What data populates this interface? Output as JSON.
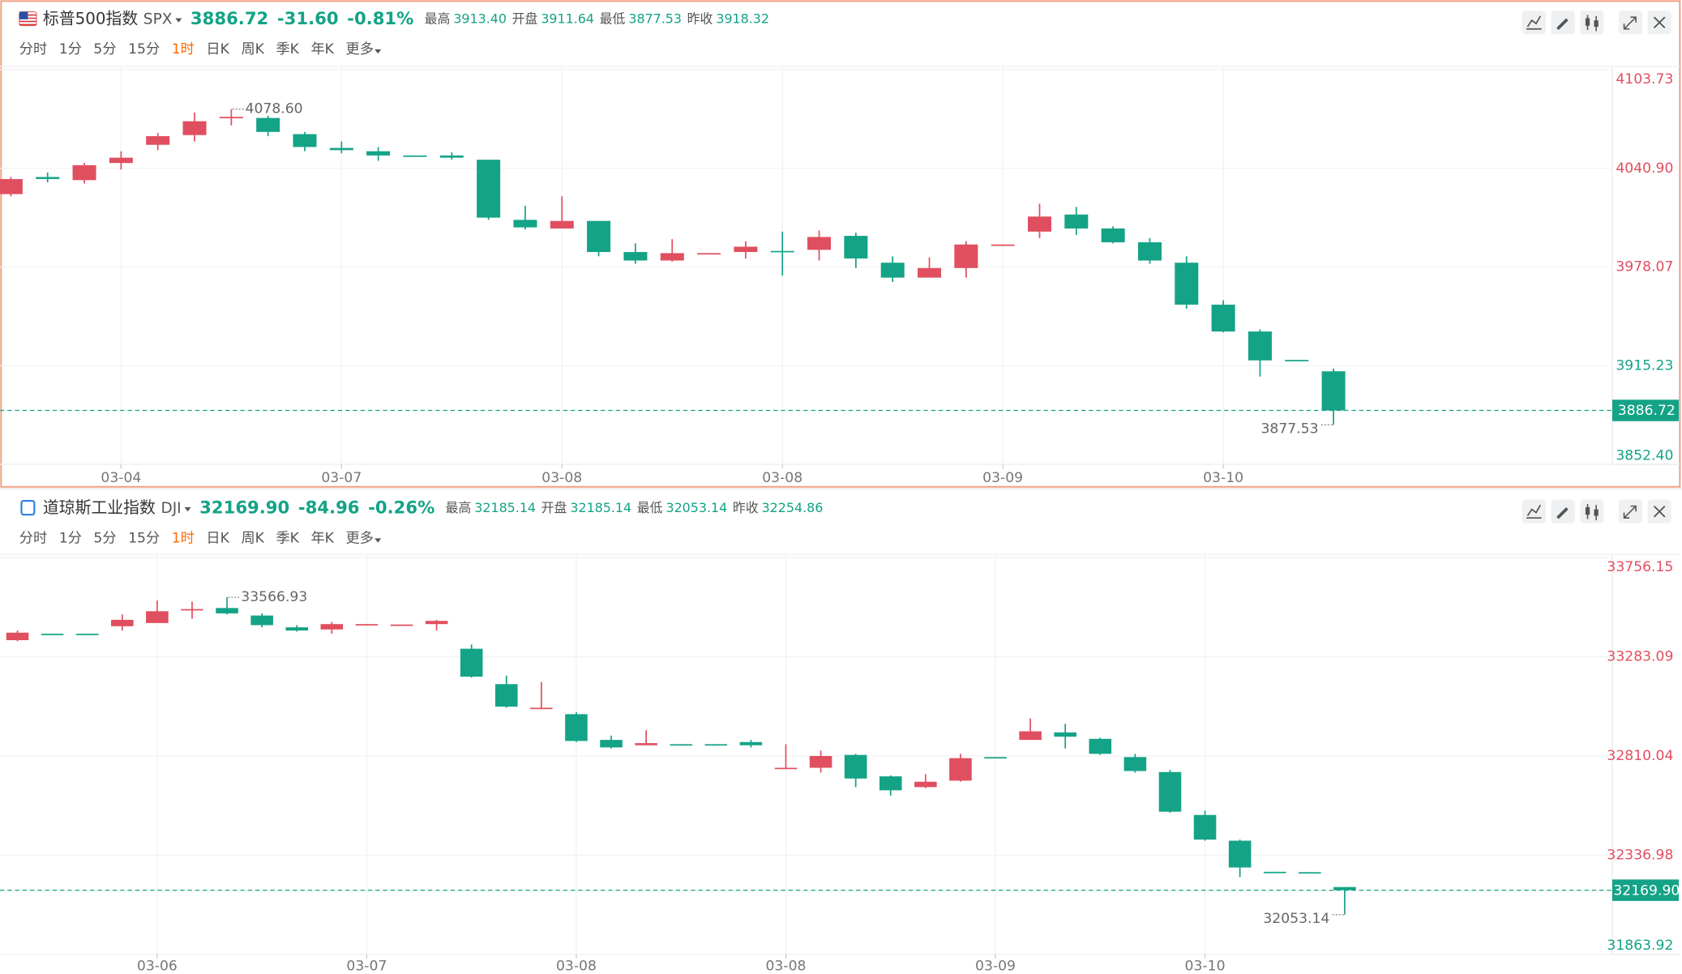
{
  "chart_data": [
    {
      "type": "candlestick",
      "name": "标普500指数",
      "symbol": "SPX",
      "price": "3886.72",
      "change": "-31.60",
      "change_pct": "-0.81%",
      "stats": [
        {
          "label": "最高",
          "value": "3913.40"
        },
        {
          "label": "开盘",
          "value": "3911.64"
        },
        {
          "label": "最低",
          "value": "3877.53"
        },
        {
          "label": "昨收",
          "value": "3918.32"
        }
      ],
      "periods": [
        "分时",
        "1分",
        "5分",
        "15分",
        "1时",
        "日K",
        "周K",
        "季K",
        "年K",
        "更多"
      ],
      "active_period": "1时",
      "up_color": "#e04f5f",
      "down_color": "#14a386",
      "categories": [
        null,
        null,
        null,
        "03-04",
        null,
        null,
        null,
        null,
        null,
        "03-07",
        null,
        null,
        null,
        null,
        null,
        "03-08",
        null,
        null,
        null,
        null,
        null,
        "03-08",
        null,
        null,
        null,
        null,
        null,
        "03-09",
        null,
        null,
        null,
        null,
        null,
        "03-10",
        null,
        null,
        null
      ],
      "open": [
        4024.5,
        4035.4,
        4033.4,
        4044.3,
        4055.9,
        4062.1,
        4073.0,
        4073.0,
        4062.7,
        4053.9,
        4051.8,
        4049.1,
        4049.1,
        4046.4,
        4008.1,
        4002.6,
        4007.4,
        3987.6,
        3982.2,
        3986.2,
        3987.6,
        3988.3,
        3989.0,
        3997.9,
        3980.8,
        3971.3,
        3977.4,
        3991.7,
        4000.6,
        4011.5,
        4002.6,
        3993.8,
        3980.8,
        3954.1,
        3937.0,
        3918.9,
        3911.64
      ],
      "high": [
        4035.4,
        4038.2,
        4044.3,
        4051.8,
        4063.4,
        4076.5,
        4078.6,
        4074.4,
        4064.1,
        4058.0,
        4054.5,
        4049.1,
        4051.1,
        4046.4,
        4017.0,
        4023.1,
        4007.4,
        3993.1,
        3995.8,
        3986.9,
        3994.5,
        4000.6,
        4001.3,
        3999.9,
        3984.9,
        3984.2,
        3994.5,
        3992.4,
        4018.4,
        4016.3,
        4004.0,
        3996.5,
        3984.9,
        3956.9,
        3938.4,
        3918.9,
        3913.4
      ],
      "low": [
        4023.1,
        4032.0,
        4031.3,
        4040.2,
        4052.5,
        4058.0,
        4068.2,
        4061.4,
        4051.8,
        4050.5,
        4045.7,
        4048.4,
        4046.4,
        4008.1,
        4001.9,
        4002.6,
        3984.9,
        3980.1,
        3981.5,
        3986.2,
        3983.5,
        3972.6,
        3982.2,
        3977.4,
        3968.5,
        3971.3,
        3971.3,
        3991.7,
        3996.5,
        3998.5,
        3993.1,
        3980.1,
        3951.4,
        3936.4,
        3908.3,
        3918.32,
        3877.53
      ],
      "close": [
        4034.1,
        4034.1,
        4042.9,
        4047.7,
        4061.4,
        4070.9,
        4073.7,
        4064.1,
        4054.5,
        4052.5,
        4049.1,
        4048.4,
        4047.7,
        4009.5,
        4003.3,
        4007.4,
        3987.6,
        3982.2,
        3986.9,
        3986.9,
        3991.0,
        3987.6,
        3997.2,
        3983.5,
        3971.3,
        3977.4,
        3992.4,
        3992.4,
        4010.2,
        4002.6,
        3993.8,
        3982.2,
        3954.1,
        3937.0,
        3918.6,
        3918.32,
        3886.72
      ],
      "max_label": "4078.60",
      "min_label": "3877.53",
      "ylim": [
        3852.4,
        4103.73
      ],
      "yticks": [
        {
          "value": 3852.4,
          "label": "3852.40"
        },
        3915.23,
        3978.07,
        {
          "value": 4040.9,
          "label": "4040.90"
        },
        4103.73
      ],
      "grid": true
    },
    {
      "type": "candlestick",
      "name": "道琼斯工业指数",
      "symbol": "DJI",
      "price": "32169.90",
      "change": "-84.96",
      "change_pct": "-0.26%",
      "stats": [
        {
          "label": "最高",
          "value": "32185.14"
        },
        {
          "label": "开盘",
          "value": "32185.14"
        },
        {
          "label": "最低",
          "value": "32053.14"
        },
        {
          "label": "昨收",
          "value": "32254.86"
        }
      ],
      "periods": [
        "分时",
        "1分",
        "5分",
        "15分",
        "1时",
        "日K",
        "周K",
        "季K",
        "年K",
        "更多"
      ],
      "active_period": "1时",
      "up_color": "#e04f5f",
      "down_color": "#14a386",
      "categories": [
        null,
        null,
        null,
        null,
        "03-06",
        null,
        null,
        null,
        null,
        null,
        "03-07",
        null,
        null,
        null,
        null,
        null,
        "03-08",
        null,
        null,
        null,
        null,
        null,
        "03-08",
        null,
        null,
        null,
        null,
        null,
        "03-09",
        null,
        null,
        null,
        null,
        null,
        "03-10",
        null,
        null,
        null,
        null
      ],
      "open": [
        33362.4,
        33393.1,
        33393.1,
        33428.9,
        33444.2,
        33505.6,
        33515.8,
        33480.0,
        33423.7,
        33413.5,
        33434.0,
        33434.0,
        33439.1,
        33321.5,
        33152.7,
        33035.1,
        33009.5,
        32886.8,
        32861.2,
        32866.3,
        32866.3,
        32876.5,
        32748.7,
        32753.8,
        32815.2,
        32712.9,
        32661.7,
        32692.4,
        32804.9,
        32886.8,
        32922.6,
        32891.9,
        32804.9,
        32733.5,
        32528.8,
        32406.1,
        32257.8,
        32256.0,
        32185.14
      ],
      "high": [
        33408.4,
        33393.1,
        33393.1,
        33485.1,
        33551.6,
        33546.4,
        33566.93,
        33490.2,
        33434.0,
        33449.3,
        33439.1,
        33437.0,
        33459.5,
        33341.9,
        33193.6,
        33162.9,
        33019.7,
        32907.2,
        32932.8,
        32866.3,
        32866.3,
        32886.8,
        32866.3,
        32835.6,
        32820.3,
        32718.0,
        32723.1,
        32820.3,
        32804.9,
        32989.1,
        32963.5,
        32897.0,
        32820.3,
        32743.6,
        32549.4,
        32411.2,
        32257.8,
        32256.0,
        32185.14
      ],
      "low": [
        33357.3,
        33392.0,
        33391.5,
        33408.4,
        33444.2,
        33464.7,
        33485.1,
        33423.7,
        33403.3,
        33393.1,
        33434.0,
        33434.0,
        33408.4,
        33183.4,
        33040.2,
        33035.1,
        32876.5,
        32845.8,
        32861.2,
        32861.2,
        32862.0,
        32851.0,
        32748.7,
        32730.6,
        32661.7,
        32620.8,
        32656.6,
        32687.3,
        32799.8,
        32886.8,
        32845.8,
        32815.2,
        32730.6,
        32539.2,
        32406.1,
        32232.3,
        32256.0,
        32254.86,
        32053.14
      ],
      "close": [
        33398.2,
        33392.0,
        33391.5,
        33459.5,
        33500.4,
        33510.7,
        33490.2,
        33434.0,
        33408.4,
        33439.1,
        33439.1,
        33437.0,
        33454.4,
        33188.5,
        33045.3,
        33040.2,
        32881.6,
        32851.0,
        32871.4,
        32861.2,
        32862.0,
        32861.2,
        32753.8,
        32810.0,
        32702.6,
        32646.4,
        32687.3,
        32799.8,
        32799.8,
        32927.7,
        32902.1,
        32820.3,
        32738.4,
        32544.3,
        32411.2,
        32278.3,
        32256.0,
        32254.86,
        32169.9
      ],
      "max_label": "33566.93",
      "min_label": "32053.14",
      "ylim": [
        31863.92,
        33756.15
      ],
      "yticks": [
        31863.92,
        32336.98,
        32810.04,
        33283.09,
        33756.15
      ],
      "grid": true
    }
  ]
}
